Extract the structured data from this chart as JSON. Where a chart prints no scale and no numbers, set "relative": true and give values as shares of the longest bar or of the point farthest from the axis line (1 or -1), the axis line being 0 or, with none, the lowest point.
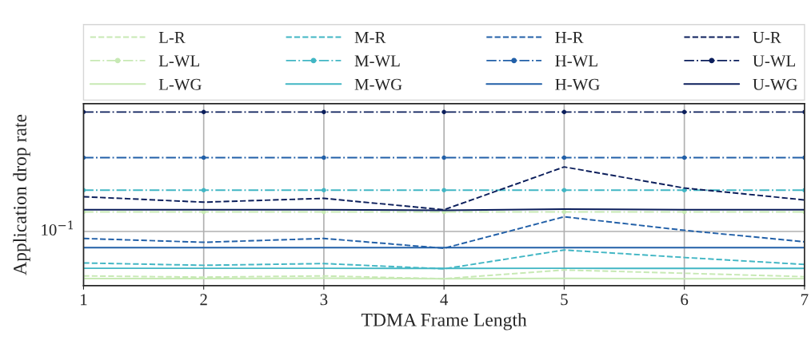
{
  "chart_data": {
    "type": "line",
    "xlabel": "TDMA Frame Length",
    "ylabel": "Application drop rate",
    "x": [
      1,
      2,
      3,
      4,
      5,
      6,
      7
    ],
    "xlim": [
      1,
      7
    ],
    "xticks": [
      1,
      2,
      3,
      4,
      5,
      6,
      7
    ],
    "relative": true,
    "grid": "x",
    "legend": "top",
    "ref_lines": [
      {
        "axis": "y",
        "value": 0.3125,
        "label": "10$^{−1}$",
        "color": "#b0b0b0"
      }
    ],
    "series": [
      {
        "name": "L-R",
        "color": "#c7e9b4",
        "line_style": "dashed",
        "marker": "none",
        "values": [
          0.0563,
          0.0494,
          0.0563,
          0.04,
          0.0906,
          0.0716,
          0.0522
        ]
      },
      {
        "name": "L-WL",
        "color": "#c7e9b4",
        "line_style": "dashdot",
        "marker": "circle",
        "values": [
          0.425,
          0.425,
          0.425,
          0.425,
          0.425,
          0.425,
          0.425
        ]
      },
      {
        "name": "L-WG",
        "color": "#c7e9b4",
        "line_style": "solid",
        "marker": "none",
        "values": [
          0.0413,
          0.0416,
          0.0434,
          0.0403,
          0.0425,
          0.0403,
          0.0406
        ]
      },
      {
        "name": "M-R",
        "color": "#41b6c4",
        "line_style": "dashed",
        "marker": "none",
        "values": [
          0.131,
          0.1175,
          0.1275,
          0.0972,
          0.2056,
          0.1625,
          0.1225
        ]
      },
      {
        "name": "M-WL",
        "color": "#41b6c4",
        "line_style": "dashdot",
        "marker": "circle",
        "values": [
          0.55,
          0.55,
          0.55,
          0.55,
          0.55,
          0.55,
          0.55
        ]
      },
      {
        "name": "M-WG",
        "color": "#41b6c4",
        "line_style": "solid",
        "marker": "none",
        "values": [
          0.1003,
          0.1003,
          0.1003,
          0.0994,
          0.1003,
          0.1,
          0.1
        ]
      },
      {
        "name": "H-R",
        "color": "#2260a8",
        "line_style": "dashed",
        "marker": "none",
        "values": [
          0.272,
          0.25,
          0.272,
          0.2156,
          0.397,
          0.319,
          0.253
        ]
      },
      {
        "name": "H-WL",
        "color": "#2260a8",
        "line_style": "dashdot",
        "marker": "circle",
        "values": [
          0.7375,
          0.7375,
          0.7375,
          0.7375,
          0.7375,
          0.7375,
          0.7375
        ]
      },
      {
        "name": "H-WG",
        "color": "#2260a8",
        "line_style": "solid",
        "marker": "none",
        "values": [
          0.219,
          0.219,
          0.219,
          0.219,
          0.219,
          0.219,
          0.219
        ]
      },
      {
        "name": "U-R",
        "color": "#0c1f5c",
        "line_style": "dashed",
        "marker": "none",
        "values": [
          0.5125,
          0.481,
          0.503,
          0.4375,
          0.684,
          0.5625,
          0.494
        ]
      },
      {
        "name": "U-WL",
        "color": "#0c1f5c",
        "line_style": "dashdot",
        "marker": "circle",
        "values": [
          1,
          1,
          1,
          1,
          1,
          1,
          1
        ]
      },
      {
        "name": "U-WG",
        "color": "#0c1f5c",
        "line_style": "solid",
        "marker": "none",
        "values": [
          0.4375,
          0.4375,
          0.4375,
          0.434,
          0.441,
          0.4375,
          0.4375
        ]
      }
    ]
  }
}
